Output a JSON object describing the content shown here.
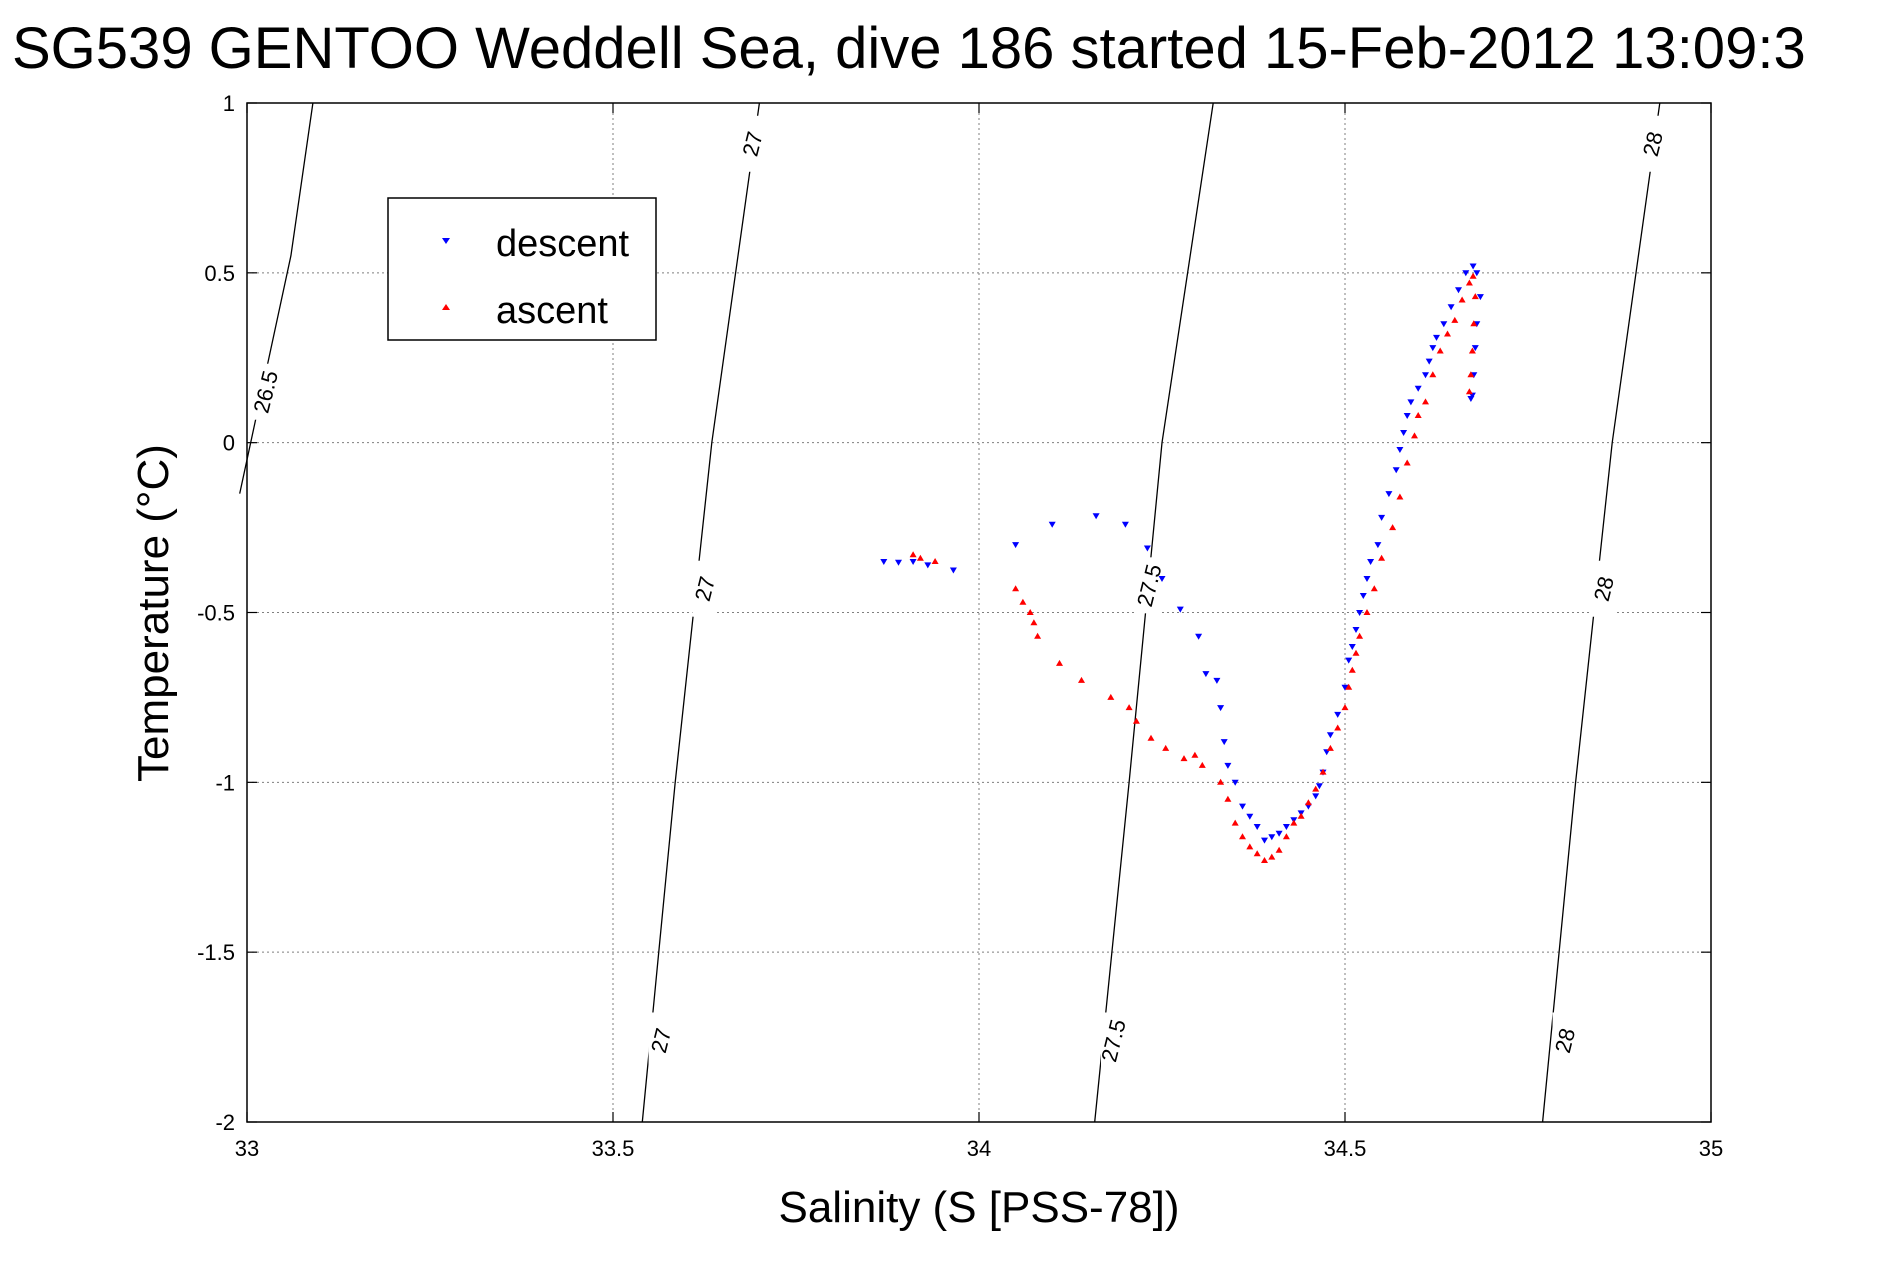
{
  "chart_data": {
    "type": "scatter",
    "title": "SG539 GENTOO Weddell Sea, dive 186 started 15-Feb-2012 13:09:3",
    "xlabel": "Salinity (S [PSS-78])",
    "ylabel": "Temperature (°C)",
    "xlim": [
      33,
      35
    ],
    "ylim": [
      -2,
      1
    ],
    "xticks": [
      "33",
      "33.5",
      "34",
      "34.5",
      "35"
    ],
    "yticks": [
      "1",
      "0.5",
      "0",
      "-0.5",
      "-1",
      "-1.5",
      "-2"
    ],
    "grid": true,
    "legend_position": "top-left",
    "density_contours": [
      {
        "label": "26.5",
        "points": [
          [
            32.99,
            -0.15
          ],
          [
            33.025,
            0.2
          ],
          [
            33.06,
            0.55
          ],
          [
            33.09,
            1.0
          ]
        ],
        "labels_at": [
          [
            33.025,
            0.15
          ]
        ]
      },
      {
        "label": "27",
        "points": [
          [
            33.54,
            -2.0
          ],
          [
            33.585,
            -1.0
          ],
          [
            33.635,
            0.0
          ],
          [
            33.7,
            1.0
          ]
        ],
        "labels_at": [
          [
            33.565,
            -1.76
          ],
          [
            33.625,
            -0.43
          ],
          [
            33.69,
            0.88
          ]
        ]
      },
      {
        "label": "27.5",
        "points": [
          [
            34.158,
            -2.0
          ],
          [
            34.205,
            -1.0
          ],
          [
            34.25,
            0.0
          ],
          [
            34.32,
            1.0
          ]
        ],
        "labels_at": [
          [
            34.183,
            -1.76
          ],
          [
            34.232,
            -0.42
          ]
        ]
      },
      {
        "label": "28",
        "points": [
          [
            34.77,
            -2.0
          ],
          [
            34.815,
            -1.0
          ],
          [
            34.865,
            0.0
          ],
          [
            34.93,
            1.0
          ]
        ],
        "labels_at": [
          [
            34.8,
            -1.76
          ],
          [
            34.853,
            -0.43
          ],
          [
            34.92,
            0.88
          ]
        ]
      }
    ],
    "series": [
      {
        "name": "descent",
        "color": "#0000ff",
        "marker": "triangle-down",
        "points": [
          [
            33.87,
            -0.35
          ],
          [
            33.89,
            -0.352
          ],
          [
            33.91,
            -0.35
          ],
          [
            33.93,
            -0.36
          ],
          [
            33.965,
            -0.375
          ],
          [
            34.05,
            -0.3
          ],
          [
            34.1,
            -0.24
          ],
          [
            34.16,
            -0.215
          ],
          [
            34.2,
            -0.24
          ],
          [
            34.23,
            -0.31
          ],
          [
            34.25,
            -0.4
          ],
          [
            34.275,
            -0.49
          ],
          [
            34.3,
            -0.57
          ],
          [
            34.31,
            -0.68
          ],
          [
            34.325,
            -0.7
          ],
          [
            34.33,
            -0.78
          ],
          [
            34.335,
            -0.88
          ],
          [
            34.34,
            -0.95
          ],
          [
            34.35,
            -1.0
          ],
          [
            34.36,
            -1.07
          ],
          [
            34.37,
            -1.1
          ],
          [
            34.38,
            -1.13
          ],
          [
            34.39,
            -1.17
          ],
          [
            34.4,
            -1.16
          ],
          [
            34.41,
            -1.15
          ],
          [
            34.42,
            -1.13
          ],
          [
            34.43,
            -1.11
          ],
          [
            34.44,
            -1.09
          ],
          [
            34.45,
            -1.07
          ],
          [
            34.46,
            -1.04
          ],
          [
            34.465,
            -1.01
          ],
          [
            34.47,
            -0.97
          ],
          [
            34.475,
            -0.91
          ],
          [
            34.48,
            -0.86
          ],
          [
            34.49,
            -0.8
          ],
          [
            34.5,
            -0.72
          ],
          [
            34.505,
            -0.64
          ],
          [
            34.51,
            -0.6
          ],
          [
            34.515,
            -0.55
          ],
          [
            34.52,
            -0.5
          ],
          [
            34.525,
            -0.45
          ],
          [
            34.53,
            -0.4
          ],
          [
            34.535,
            -0.35
          ],
          [
            34.545,
            -0.3
          ],
          [
            34.55,
            -0.22
          ],
          [
            34.56,
            -0.15
          ],
          [
            34.57,
            -0.08
          ],
          [
            34.575,
            -0.02
          ],
          [
            34.58,
            0.03
          ],
          [
            34.585,
            0.08
          ],
          [
            34.59,
            0.12
          ],
          [
            34.6,
            0.16
          ],
          [
            34.61,
            0.2
          ],
          [
            34.615,
            0.24
          ],
          [
            34.62,
            0.28
          ],
          [
            34.625,
            0.31
          ],
          [
            34.635,
            0.35
          ],
          [
            34.645,
            0.4
          ],
          [
            34.655,
            0.45
          ],
          [
            34.665,
            0.5
          ],
          [
            34.675,
            0.52
          ],
          [
            34.68,
            0.5
          ],
          [
            34.685,
            0.43
          ],
          [
            34.68,
            0.35
          ],
          [
            34.678,
            0.28
          ],
          [
            34.676,
            0.2
          ],
          [
            34.674,
            0.14
          ],
          [
            34.672,
            0.13
          ]
        ]
      },
      {
        "name": "ascent",
        "color": "#ff0000",
        "marker": "triangle-up",
        "points": [
          [
            33.91,
            -0.33
          ],
          [
            33.92,
            -0.34
          ],
          [
            33.94,
            -0.35
          ],
          [
            34.05,
            -0.43
          ],
          [
            34.06,
            -0.47
          ],
          [
            34.07,
            -0.5
          ],
          [
            34.075,
            -0.53
          ],
          [
            34.08,
            -0.57
          ],
          [
            34.11,
            -0.65
          ],
          [
            34.14,
            -0.7
          ],
          [
            34.18,
            -0.75
          ],
          [
            34.205,
            -0.78
          ],
          [
            34.215,
            -0.82
          ],
          [
            34.235,
            -0.87
          ],
          [
            34.255,
            -0.9
          ],
          [
            34.28,
            -0.93
          ],
          [
            34.295,
            -0.92
          ],
          [
            34.305,
            -0.95
          ],
          [
            34.33,
            -1.0
          ],
          [
            34.34,
            -1.05
          ],
          [
            34.35,
            -1.12
          ],
          [
            34.36,
            -1.16
          ],
          [
            34.37,
            -1.19
          ],
          [
            34.38,
            -1.21
          ],
          [
            34.39,
            -1.23
          ],
          [
            34.4,
            -1.22
          ],
          [
            34.41,
            -1.2
          ],
          [
            34.42,
            -1.16
          ],
          [
            34.43,
            -1.12
          ],
          [
            34.44,
            -1.1
          ],
          [
            34.45,
            -1.06
          ],
          [
            34.46,
            -1.02
          ],
          [
            34.47,
            -0.97
          ],
          [
            34.48,
            -0.9
          ],
          [
            34.49,
            -0.84
          ],
          [
            34.5,
            -0.78
          ],
          [
            34.505,
            -0.72
          ],
          [
            34.51,
            -0.67
          ],
          [
            34.515,
            -0.62
          ],
          [
            34.52,
            -0.57
          ],
          [
            34.53,
            -0.5
          ],
          [
            34.54,
            -0.43
          ],
          [
            34.55,
            -0.34
          ],
          [
            34.565,
            -0.25
          ],
          [
            34.575,
            -0.16
          ],
          [
            34.585,
            -0.06
          ],
          [
            34.595,
            0.02
          ],
          [
            34.6,
            0.08
          ],
          [
            34.61,
            0.12
          ],
          [
            34.62,
            0.2
          ],
          [
            34.63,
            0.27
          ],
          [
            34.64,
            0.32
          ],
          [
            34.65,
            0.36
          ],
          [
            34.66,
            0.42
          ],
          [
            34.67,
            0.47
          ],
          [
            34.675,
            0.49
          ],
          [
            34.678,
            0.43
          ],
          [
            34.676,
            0.35
          ],
          [
            34.674,
            0.27
          ],
          [
            34.672,
            0.2
          ],
          [
            34.67,
            0.15
          ]
        ]
      }
    ]
  }
}
